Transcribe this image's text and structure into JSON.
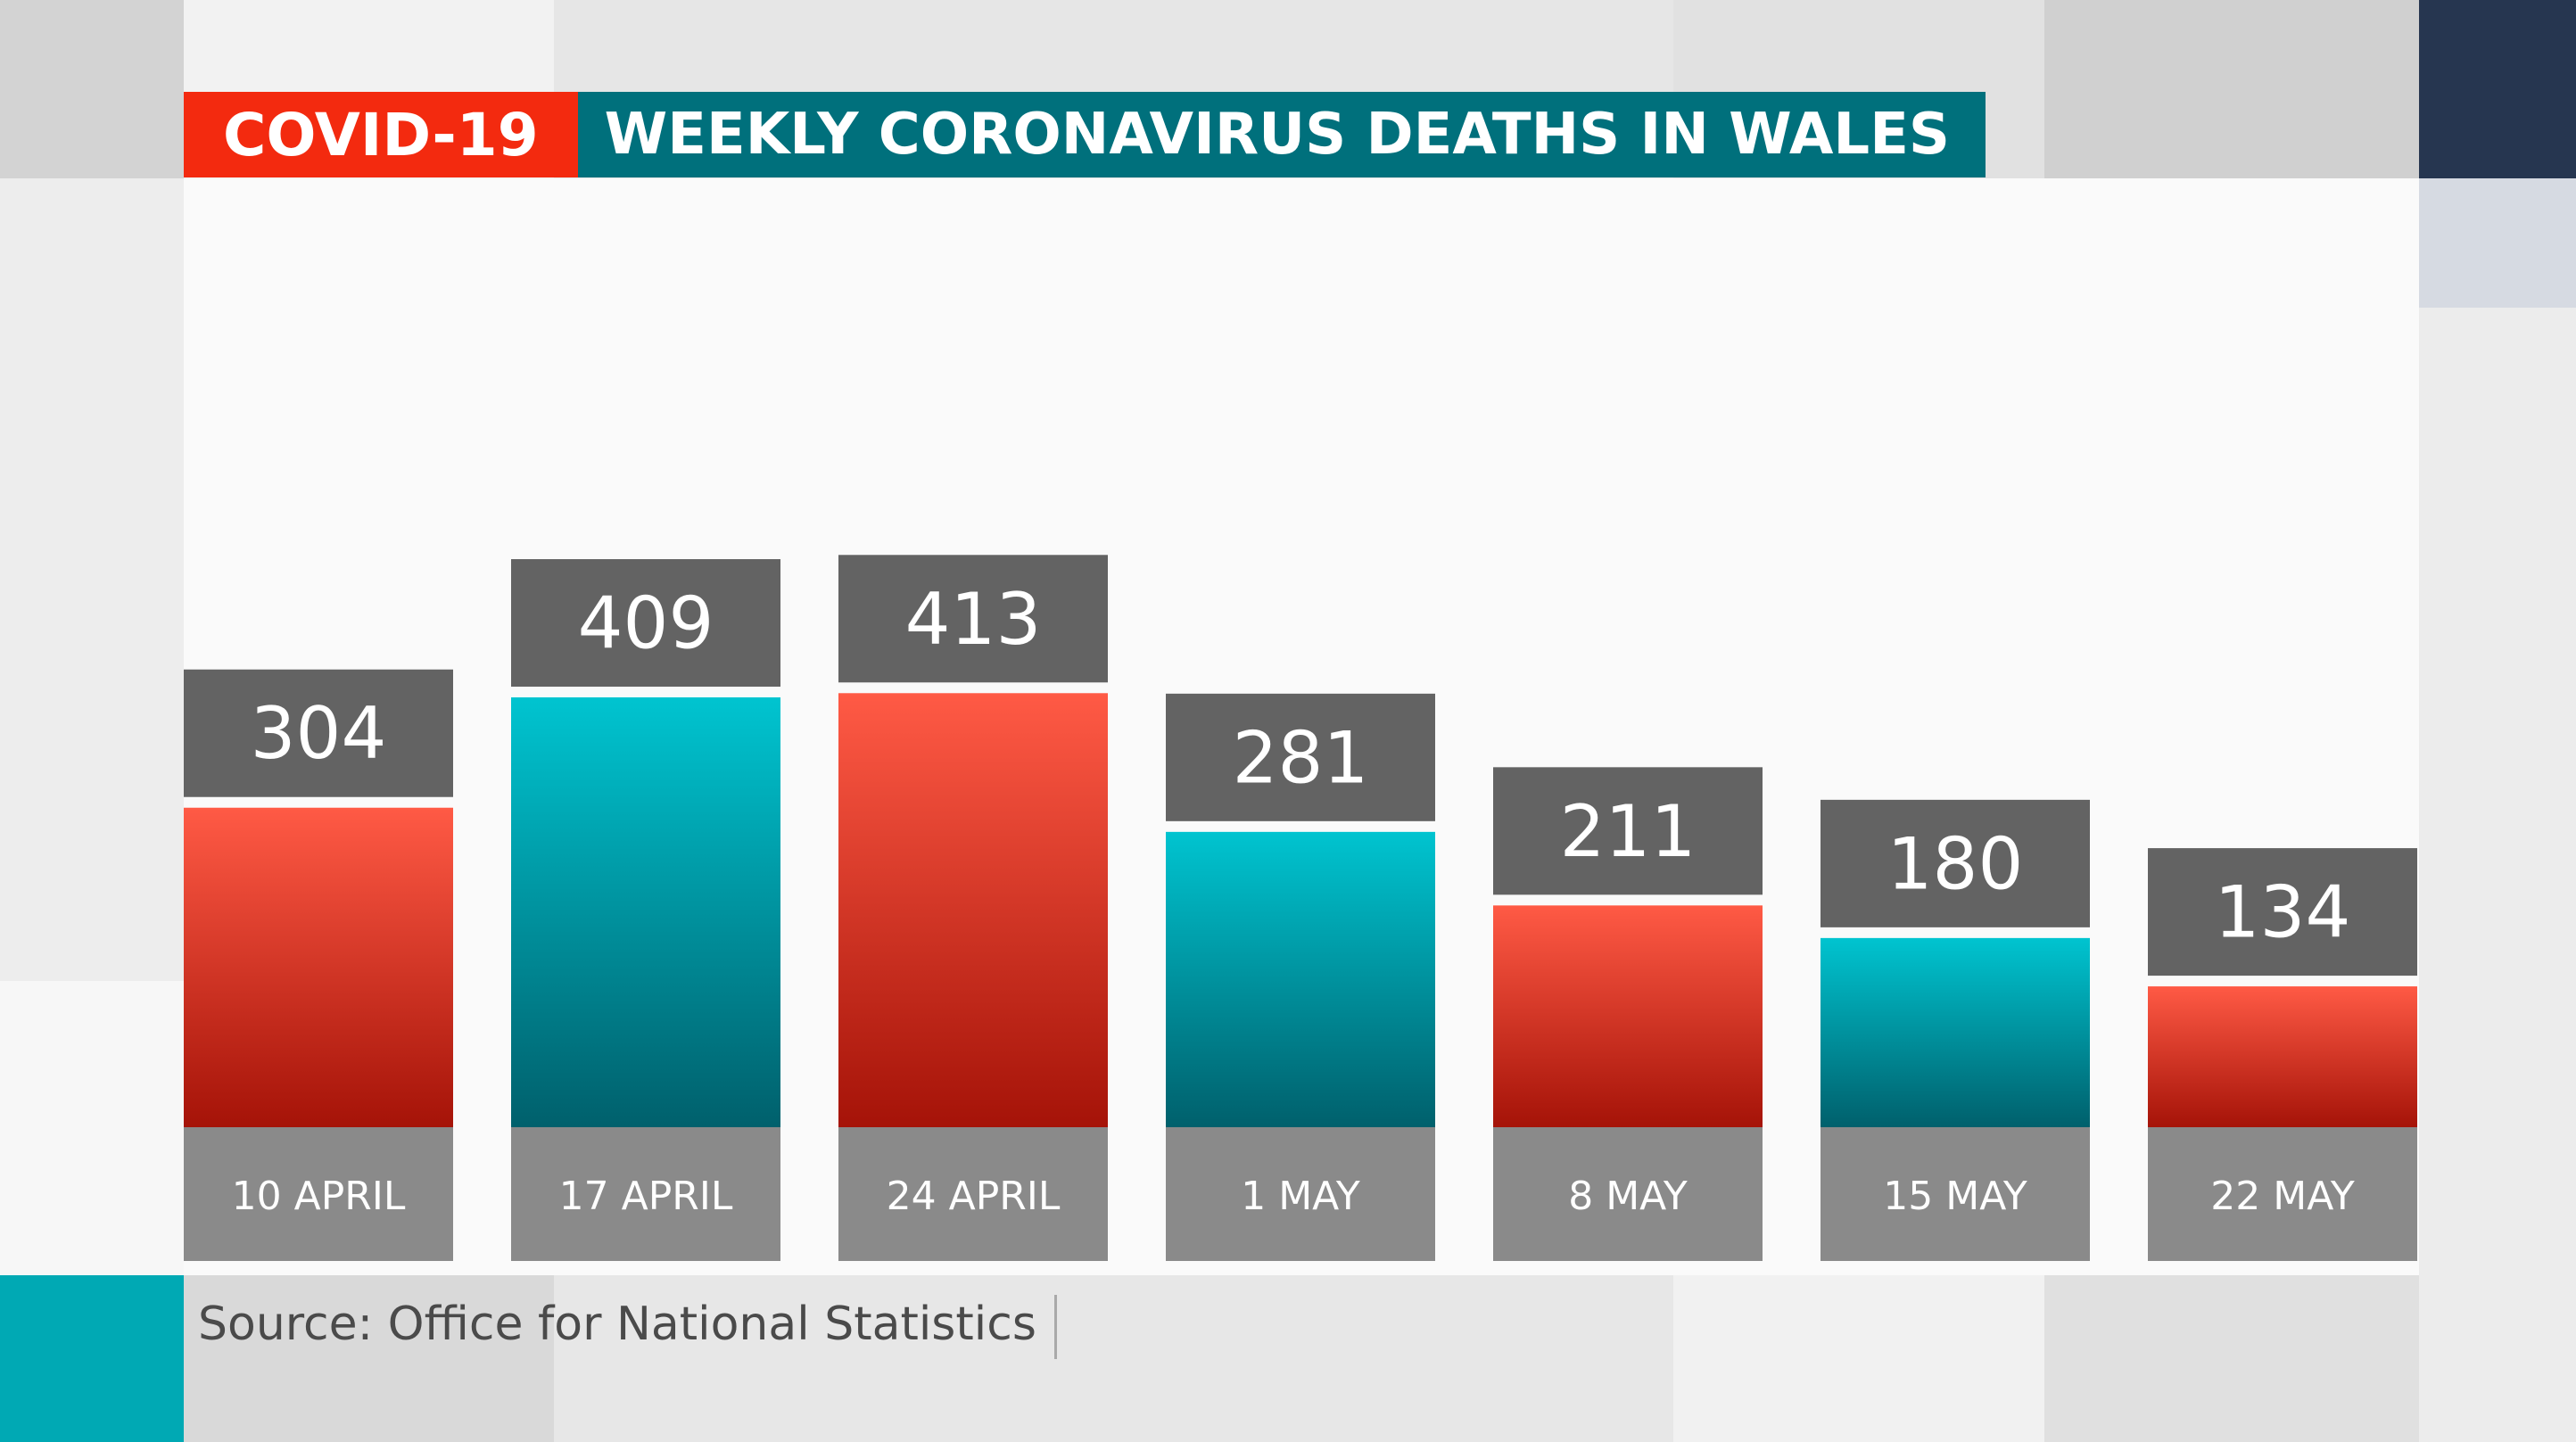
{
  "header": {
    "tag": "COVID-19",
    "title": "WEEKLY CORONAVIRUS DEATHS IN WALES"
  },
  "source": "Source: Office for National Statistics",
  "colors": {
    "red": "#f32a0f",
    "teal": "#00707c",
    "bar_red_top": "#ff5a45",
    "bar_red_bottom": "#a51308",
    "bar_teal_top": "#00c4d0",
    "bar_teal_bottom": "#00606c",
    "value_box": "#636363",
    "label_box": "#8a8a8a"
  },
  "chart_data": {
    "type": "bar",
    "title": "WEEKLY CORONAVIRUS DEATHS IN WALES",
    "categories": [
      "10 APRIL",
      "17 APRIL",
      "24 APRIL",
      "1 MAY",
      "8 MAY",
      "15 MAY",
      "22 MAY"
    ],
    "values": [
      304,
      409,
      413,
      281,
      211,
      180,
      134
    ],
    "value_labels": [
      "304",
      "409",
      "413",
      "281",
      "211",
      "180",
      "134"
    ],
    "bar_colors": [
      "red",
      "teal",
      "red",
      "teal",
      "red",
      "teal",
      "red"
    ],
    "xlabel": "",
    "ylabel": "",
    "grid": false,
    "legend": "none"
  }
}
